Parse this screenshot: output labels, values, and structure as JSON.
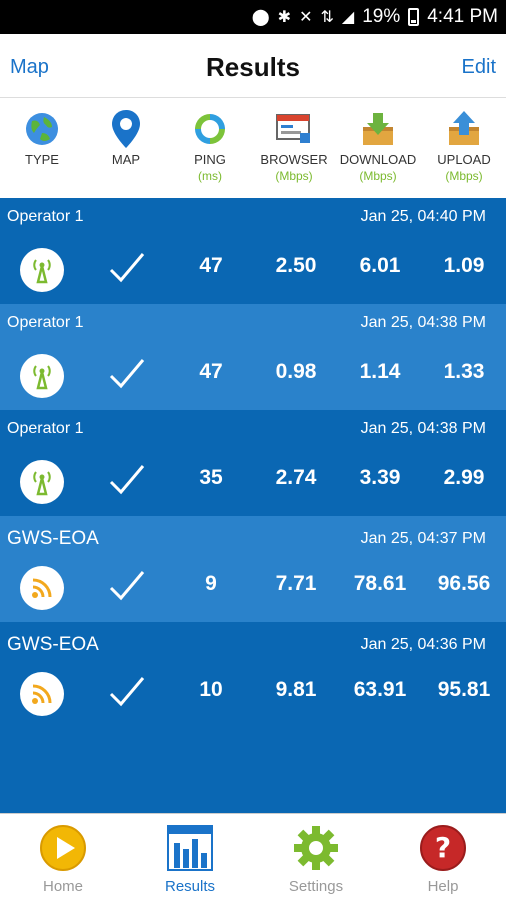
{
  "status_bar": {
    "battery": "19%",
    "time": "4:41 PM"
  },
  "nav": {
    "left": "Map",
    "title": "Results",
    "right": "Edit"
  },
  "columns": [
    {
      "label": "TYPE",
      "unit": ""
    },
    {
      "label": "MAP",
      "unit": ""
    },
    {
      "label": "PING",
      "unit": "(ms)"
    },
    {
      "label": "BROWSER",
      "unit": "(Mbps)"
    },
    {
      "label": "DOWNLOAD",
      "unit": "(Mbps)"
    },
    {
      "label": "UPLOAD",
      "unit": "(Mbps)"
    }
  ],
  "results": [
    {
      "operator": "Operator 1",
      "timestamp": "Jan 25, 04:40 PM",
      "type_icon": "cell-tower-icon",
      "ping": "47",
      "browser": "2.50",
      "download": "6.01",
      "upload": "1.09"
    },
    {
      "operator": "Operator 1",
      "timestamp": "Jan 25, 04:38 PM",
      "type_icon": "cell-tower-icon",
      "ping": "47",
      "browser": "0.98",
      "download": "1.14",
      "upload": "1.33"
    },
    {
      "operator": "Operator 1",
      "timestamp": "Jan 25, 04:38 PM",
      "type_icon": "cell-tower-icon",
      "ping": "35",
      "browser": "2.74",
      "download": "3.39",
      "upload": "2.99"
    },
    {
      "operator": "GWS-EOA",
      "timestamp": "Jan 25, 04:37 PM",
      "type_icon": "wifi-icon",
      "ping": "9",
      "browser": "7.71",
      "download": "78.61",
      "upload": "96.56"
    },
    {
      "operator": "GWS-EOA",
      "timestamp": "Jan 25, 04:36 PM",
      "type_icon": "wifi-icon",
      "ping": "10",
      "browser": "9.81",
      "download": "63.91",
      "upload": "95.81"
    }
  ],
  "tabs": [
    {
      "label": "Home"
    },
    {
      "label": "Results"
    },
    {
      "label": "Settings"
    },
    {
      "label": "Help"
    }
  ],
  "colors": {
    "row_dark": "#0a67b3",
    "row_light": "#2a82cb",
    "accent": "#1a73c9",
    "unit_green": "#7cba2f"
  }
}
